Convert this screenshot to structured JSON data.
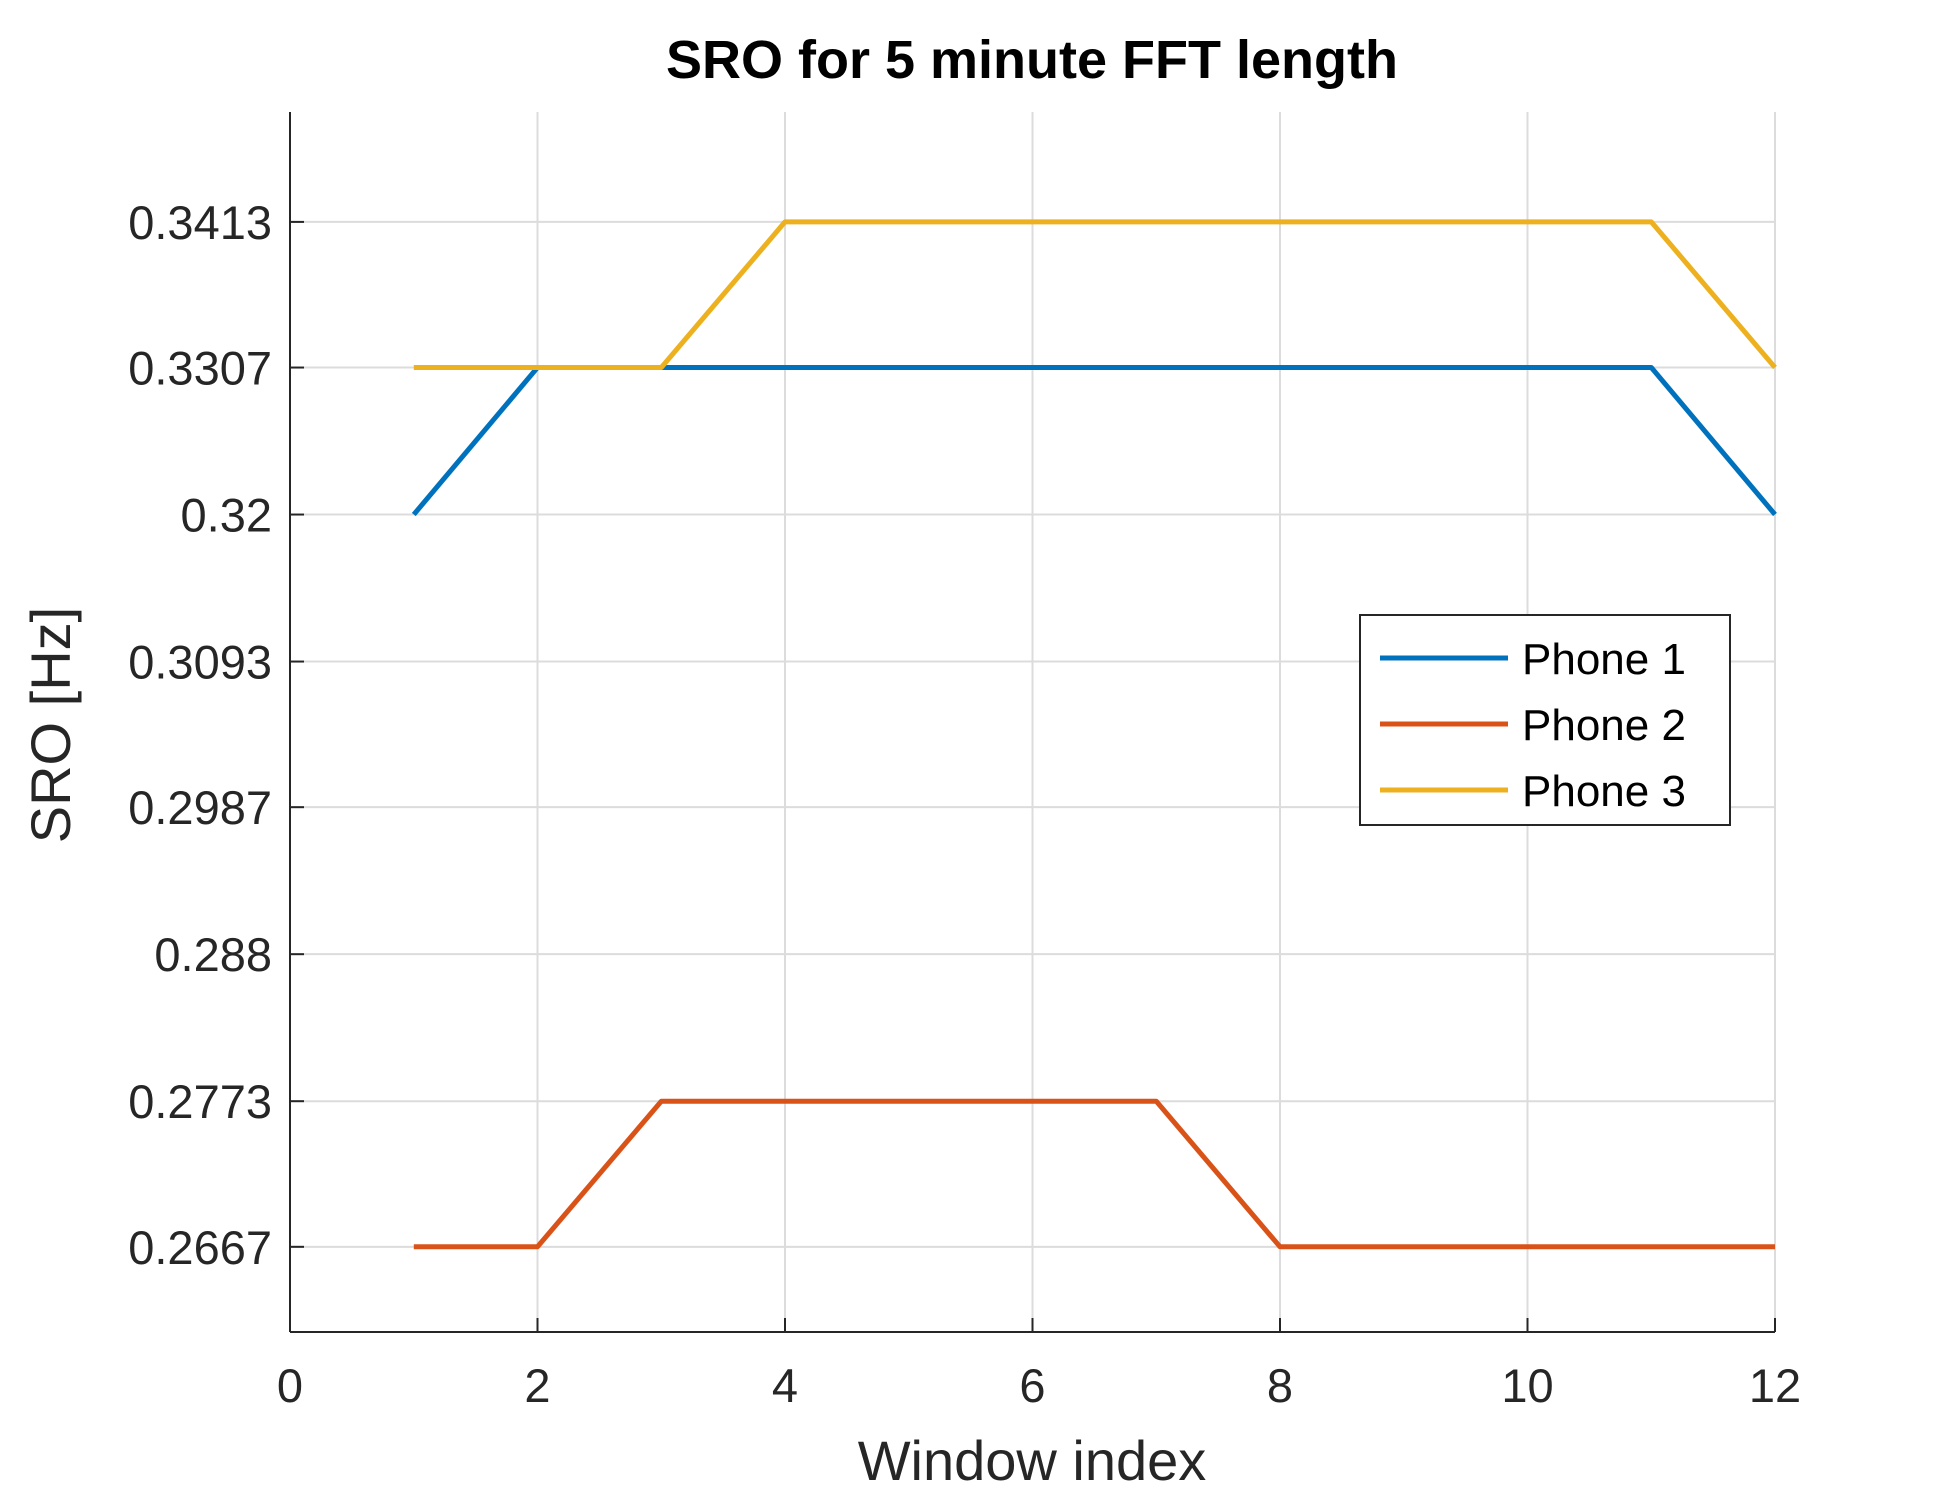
{
  "chart_data": {
    "type": "line",
    "title": "SRO for 5 minute FFT length",
    "xlabel": "Window index",
    "ylabel": "SRO [Hz]",
    "xlim": [
      0,
      12
    ],
    "ylim": [
      0.2605,
      0.3493
    ],
    "grid": true,
    "legend_position": "right",
    "x_ticks": [
      0,
      2,
      4,
      6,
      8,
      10,
      12
    ],
    "x_tick_labels": [
      "0",
      "2",
      "4",
      "6",
      "8",
      "10",
      "12"
    ],
    "y_ticks": [
      0.2667,
      0.2773,
      0.288,
      0.2987,
      0.3093,
      0.32,
      0.3307,
      0.3413
    ],
    "y_tick_labels": [
      "0.2667",
      "0.2773",
      "0.288",
      "0.2987",
      "0.3093",
      "0.32",
      "0.3307",
      "0.3413"
    ],
    "x": [
      1,
      2,
      3,
      4,
      5,
      6,
      7,
      8,
      9,
      10,
      11,
      12
    ],
    "series": [
      {
        "name": "Phone 1",
        "color": "#0072BD",
        "values": [
          0.32,
          0.3307,
          0.3307,
          0.3307,
          0.3307,
          0.3307,
          0.3307,
          0.3307,
          0.3307,
          0.3307,
          0.3307,
          0.32
        ]
      },
      {
        "name": "Phone 2",
        "color": "#D95319",
        "values": [
          0.2667,
          0.2667,
          0.2773,
          0.2773,
          0.2773,
          0.2773,
          0.2773,
          0.2667,
          0.2667,
          0.2667,
          0.2667,
          0.2667
        ]
      },
      {
        "name": "Phone 3",
        "color": "#EDB120",
        "values": [
          0.3307,
          0.3307,
          0.3307,
          0.3413,
          0.3413,
          0.3413,
          0.3413,
          0.3413,
          0.3413,
          0.3413,
          0.3413,
          0.3307
        ]
      }
    ]
  }
}
